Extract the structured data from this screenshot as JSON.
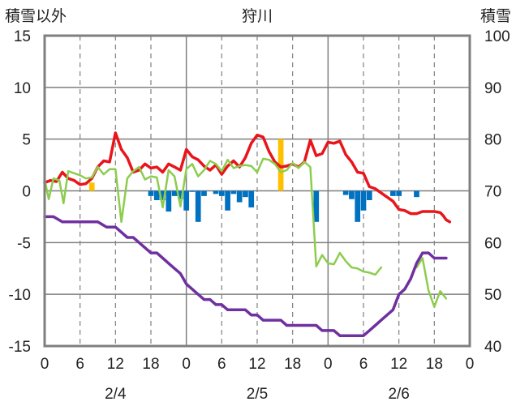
{
  "chart_data": {
    "type": "line",
    "title": "狩川",
    "y_left_label": "積雪以外",
    "y_right_label": "積雪",
    "y_left_ticks": [
      "15",
      "10",
      "5",
      "0",
      "-5",
      "-10",
      "-15"
    ],
    "y_right_ticks": [
      "100",
      "90",
      "80",
      "70",
      "60",
      "50",
      "40"
    ],
    "y_left_range": [
      -15,
      15
    ],
    "y_right_range": [
      40,
      100
    ],
    "x_range_hours": [
      0,
      72
    ],
    "x_tick_labels": [
      "0",
      "6",
      "12",
      "18",
      "0",
      "6",
      "12",
      "18",
      "0",
      "6",
      "12",
      "18",
      "0"
    ],
    "date_labels": [
      "2/4",
      "2/5",
      "2/6"
    ],
    "grid": "dashed vertical lines every 6 hours",
    "colors": {
      "red": "#e8151b",
      "green": "#8ccd4e",
      "purple": "#7030a0",
      "blue_bar": "#0070c0",
      "orange_bar": "#ffc000"
    },
    "series": [
      {
        "axis": "left",
        "values": [
          [
            0,
            0.8
          ],
          [
            1,
            1.0
          ],
          [
            2,
            0.9
          ],
          [
            3,
            1.8
          ],
          [
            4,
            1.2
          ],
          [
            5,
            1.0
          ],
          [
            6,
            0.6
          ],
          [
            7,
            0.7
          ],
          [
            8,
            1.2
          ],
          [
            9,
            2.3
          ],
          [
            10,
            2.9
          ],
          [
            11,
            2.8
          ],
          [
            12,
            5.6
          ],
          [
            13,
            4.0
          ],
          [
            14,
            3.2
          ],
          [
            15,
            1.8
          ],
          [
            16,
            2.0
          ],
          [
            17,
            2.6
          ],
          [
            18,
            2.2
          ],
          [
            19,
            2.3
          ],
          [
            20,
            1.8
          ],
          [
            21,
            2.6
          ],
          [
            22,
            2.3
          ],
          [
            23,
            2.0
          ],
          [
            24,
            4.0
          ],
          [
            25,
            3.3
          ],
          [
            26,
            3.0
          ],
          [
            27,
            2.4
          ],
          [
            28,
            2.0
          ],
          [
            29,
            2.5
          ],
          [
            30,
            1.6
          ],
          [
            31,
            2.4
          ],
          [
            32,
            2.9
          ],
          [
            33,
            2.3
          ],
          [
            34,
            3.2
          ],
          [
            35,
            4.6
          ],
          [
            36,
            5.4
          ],
          [
            37,
            5.2
          ],
          [
            38,
            3.8
          ],
          [
            39,
            2.8
          ],
          [
            40,
            2.3
          ],
          [
            41,
            2.4
          ],
          [
            42,
            2.6
          ],
          [
            43,
            2.3
          ],
          [
            44,
            2.8
          ],
          [
            45,
            4.9
          ],
          [
            46,
            3.4
          ],
          [
            47,
            3.6
          ],
          [
            48,
            4.7
          ],
          [
            49,
            4.6
          ],
          [
            50,
            4.8
          ],
          [
            51,
            3.5
          ],
          [
            52,
            2.8
          ],
          [
            53,
            1.8
          ],
          [
            54,
            1.7
          ],
          [
            55,
            0.4
          ],
          [
            56,
            0.2
          ],
          [
            57,
            -0.2
          ],
          [
            58,
            -0.6
          ],
          [
            59,
            -1.0
          ],
          [
            60,
            -1.8
          ],
          [
            61,
            -1.9
          ],
          [
            62,
            -2.2
          ],
          [
            63,
            -2.2
          ],
          [
            64,
            -2.0
          ],
          [
            65,
            -2.0
          ],
          [
            66,
            -2.0
          ],
          [
            67,
            -2.1
          ],
          [
            67.5,
            -2.4
          ],
          [
            68,
            -2.8
          ],
          [
            68.6,
            -3.0
          ]
        ]
      },
      {
        "axis": "left",
        "values": [
          [
            0,
            1.1
          ],
          [
            0.7,
            -0.8
          ],
          [
            1.5,
            1.2
          ],
          [
            2.5,
            1.0
          ],
          [
            3.2,
            -1.2
          ],
          [
            4,
            1.9
          ],
          [
            5,
            1.7
          ],
          [
            6,
            1.5
          ],
          [
            7,
            1.2
          ],
          [
            8,
            1.3
          ],
          [
            9,
            2.3
          ],
          [
            10,
            1.6
          ],
          [
            11,
            2.1
          ],
          [
            12,
            2.1
          ],
          [
            13,
            -3.0
          ],
          [
            14,
            1.2
          ],
          [
            15,
            1.9
          ],
          [
            16,
            2.3
          ],
          [
            17,
            1.1
          ],
          [
            18,
            1.4
          ],
          [
            19,
            1.3
          ],
          [
            20,
            -1.6
          ],
          [
            21,
            2.0
          ],
          [
            22,
            1.4
          ],
          [
            23,
            -1.5
          ],
          [
            24,
            2.1
          ],
          [
            25,
            2.6
          ],
          [
            26,
            1.4
          ],
          [
            27,
            2.0
          ],
          [
            28,
            2.9
          ],
          [
            29,
            2.6
          ],
          [
            30,
            1.9
          ],
          [
            31,
            3.0
          ],
          [
            32,
            2.2
          ],
          [
            33,
            2.4
          ],
          [
            34,
            2.5
          ],
          [
            35,
            2.4
          ],
          [
            36,
            1.8
          ],
          [
            37,
            3.1
          ],
          [
            38,
            3.0
          ],
          [
            39,
            2.6
          ],
          [
            40,
            1.8
          ],
          [
            41,
            2.0
          ],
          [
            42,
            2.7
          ],
          [
            43,
            2.2
          ],
          [
            44,
            2.8
          ],
          [
            45,
            2.3
          ],
          [
            46,
            -7.3
          ],
          [
            47,
            -6.2
          ],
          [
            48,
            -7.0
          ],
          [
            49,
            -7.1
          ],
          [
            50,
            -6.0
          ],
          [
            51,
            -6.8
          ],
          [
            52,
            -7.4
          ],
          [
            53,
            -7.5
          ],
          [
            54,
            -7.8
          ],
          [
            55,
            -7.9
          ],
          [
            56,
            -8.1
          ],
          [
            57,
            -7.4
          ]
        ]
      },
      {
        "axis": "left",
        "values": [
          [
            63,
            -7.4
          ],
          [
            64,
            -6.5
          ],
          [
            65,
            -9.6
          ],
          [
            66,
            -11.2
          ],
          [
            67,
            -9.7
          ],
          [
            68,
            -10.4
          ]
        ]
      },
      {
        "axis": "right",
        "values": [
          [
            0,
            65
          ],
          [
            1.5,
            65
          ],
          [
            3,
            64
          ],
          [
            6,
            64
          ],
          [
            9,
            64
          ],
          [
            10.5,
            63
          ],
          [
            12,
            63
          ],
          [
            13,
            62
          ],
          [
            14,
            61
          ],
          [
            15,
            61
          ],
          [
            16,
            60
          ],
          [
            17,
            59
          ],
          [
            18,
            58
          ],
          [
            19,
            58
          ],
          [
            20,
            57
          ],
          [
            21,
            56
          ],
          [
            22,
            55
          ],
          [
            23,
            54
          ],
          [
            24,
            52
          ],
          [
            25,
            51
          ],
          [
            26,
            50
          ],
          [
            27,
            49
          ],
          [
            28,
            49
          ],
          [
            29,
            48
          ],
          [
            30,
            48
          ],
          [
            31,
            47
          ],
          [
            32,
            47
          ],
          [
            33,
            47
          ],
          [
            34,
            47
          ],
          [
            35,
            46
          ],
          [
            36,
            46
          ],
          [
            37,
            45
          ],
          [
            38,
            45
          ],
          [
            39,
            45
          ],
          [
            40,
            45
          ],
          [
            41,
            44
          ],
          [
            42,
            44
          ],
          [
            43,
            44
          ],
          [
            44,
            44
          ],
          [
            45,
            44
          ],
          [
            46,
            44
          ],
          [
            47,
            43
          ],
          [
            48,
            43
          ],
          [
            49,
            43
          ],
          [
            50,
            42
          ],
          [
            51,
            42
          ],
          [
            52,
            42
          ],
          [
            53,
            42
          ],
          [
            54,
            42
          ],
          [
            55,
            43
          ],
          [
            56,
            44
          ],
          [
            57,
            45
          ],
          [
            58,
            46
          ],
          [
            59,
            47
          ],
          [
            60,
            50
          ],
          [
            61,
            51
          ],
          [
            62,
            53
          ],
          [
            63,
            56
          ],
          [
            64,
            58
          ],
          [
            65,
            58
          ],
          [
            66,
            57
          ],
          [
            67,
            57
          ],
          [
            68,
            57
          ]
        ]
      }
    ],
    "bars": [
      {
        "color": "blue_bar",
        "values": [
          [
            18,
            -0.5
          ],
          [
            19,
            -0.9
          ],
          [
            20,
            -0.9
          ],
          [
            21,
            -2.0
          ],
          [
            22,
            -0.5
          ],
          [
            23,
            -0.8
          ],
          [
            24,
            -1.9
          ],
          [
            25,
            -0.1
          ],
          [
            26,
            -3.0
          ],
          [
            27,
            -0.5
          ],
          [
            29,
            -0.3
          ],
          [
            30,
            -0.5
          ],
          [
            31,
            -1.9
          ],
          [
            32,
            -0.3
          ],
          [
            33,
            -1.1
          ],
          [
            34,
            -0.6
          ],
          [
            35,
            -1.6
          ],
          [
            46,
            -3.0
          ],
          [
            51,
            -0.4
          ],
          [
            52,
            -0.8
          ],
          [
            53,
            -3.0
          ],
          [
            54,
            -1.9
          ],
          [
            55,
            -0.9
          ],
          [
            59,
            -0.5
          ],
          [
            60,
            -0.5
          ],
          [
            63,
            -0.6
          ]
        ]
      },
      {
        "color": "orange_bar",
        "values": [
          [
            8,
            0.8
          ],
          [
            40,
            5.0
          ]
        ]
      }
    ]
  }
}
